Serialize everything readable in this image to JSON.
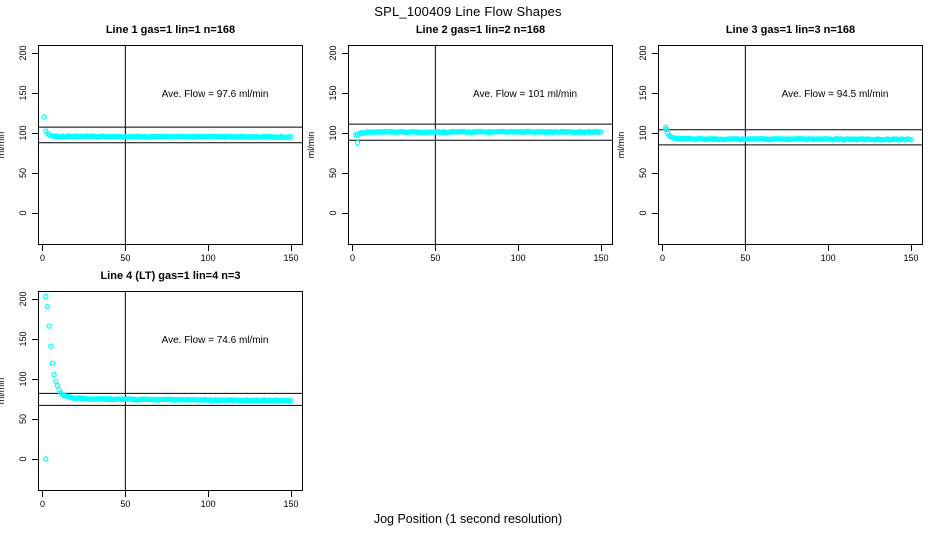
{
  "title": "SPL_100409  Line Flow Shapes",
  "x_axis_label": "Jog Position (1 second resolution)",
  "colors": {
    "points": "#00FFFF",
    "axis": "#000000",
    "background": "#FFFFFF"
  },
  "chart_data": {
    "type": "scatter",
    "title": "SPL_100409  Line Flow Shapes",
    "xlabel": "Jog Position (1 second resolution)",
    "ylabel": "ml/min",
    "grid": false,
    "layout": "2-row grid, 4 panels (3 top, 1 bottom-left)",
    "x_ticks": [
      0,
      50,
      100,
      150
    ],
    "y_ticks": [
      0,
      50,
      100,
      150,
      200
    ],
    "xlim": [
      -3,
      157
    ],
    "ylim": [
      -40,
      210
    ],
    "vline_x": 50,
    "marker": "open-circle",
    "panels": [
      {
        "id": "line-1",
        "title": "Line 1 gas=1 lin=1 n=168",
        "annotation": "Ave. Flow =  97.6  ml/min",
        "ave_flow_ml_min": 97.6,
        "n": 168,
        "ref_lines": [
          107.4,
          87.8
        ],
        "outliers": [
          [
            1,
            120
          ]
        ],
        "profile": [
          [
            2,
            103
          ],
          [
            3,
            99.5
          ],
          [
            4,
            97.8
          ],
          [
            5,
            96.9
          ],
          [
            6,
            96.3
          ],
          [
            8,
            95.9
          ],
          [
            10,
            95.7
          ],
          [
            20,
            95.6
          ],
          [
            50,
            95.5
          ],
          [
            100,
            95.3
          ],
          [
            150,
            95.0
          ]
        ]
      },
      {
        "id": "line-2",
        "title": "Line 2 gas=1 lin=2 n=168",
        "annotation": "Ave. Flow =  101  ml/min",
        "ave_flow_ml_min": 101,
        "n": 168,
        "ref_lines": [
          111.1,
          90.9
        ],
        "outliers": [
          [
            3,
            88
          ]
        ],
        "profile": [
          [
            2,
            97.8
          ],
          [
            3,
            98.6
          ],
          [
            4,
            99.4
          ],
          [
            5,
            99.9
          ],
          [
            6,
            100.3
          ],
          [
            8,
            100.8
          ],
          [
            10,
            101.0
          ],
          [
            20,
            101.2
          ],
          [
            50,
            101.3
          ],
          [
            100,
            101.3
          ],
          [
            150,
            101.4
          ]
        ]
      },
      {
        "id": "line-3",
        "title": "Line 3 gas=1 lin=3 n=168",
        "annotation": "Ave. Flow =  94.5  ml/min",
        "ave_flow_ml_min": 94.5,
        "n": 168,
        "ref_lines": [
          104.0,
          85.1
        ],
        "outliers": [
          [
            2,
            107
          ],
          [
            2.5,
            104.5
          ]
        ],
        "profile": [
          [
            2,
            104
          ],
          [
            3,
            100
          ],
          [
            4,
            97
          ],
          [
            5,
            95.3
          ],
          [
            6,
            94.2
          ],
          [
            8,
            93.2
          ],
          [
            10,
            92.8
          ],
          [
            20,
            92.5
          ],
          [
            50,
            92.4
          ],
          [
            100,
            92.2
          ],
          [
            150,
            92.0
          ]
        ]
      },
      {
        "id": "line-4",
        "title": "Line 4 (LT) gas=1 lin=4 n=3",
        "annotation": "Ave. Flow =  74.6  ml/min",
        "ave_flow_ml_min": 74.6,
        "n": 3,
        "ref_lines": [
          82.1,
          67.1
        ],
        "outliers": [
          [
            2,
            0
          ]
        ],
        "profile": [
          [
            2,
            203
          ],
          [
            3,
            190
          ],
          [
            4,
            166
          ],
          [
            5,
            141
          ],
          [
            6,
            119
          ],
          [
            7,
            105
          ],
          [
            8,
            97
          ],
          [
            9,
            91
          ],
          [
            10,
            86.5
          ],
          [
            11,
            83
          ],
          [
            12,
            81
          ],
          [
            13,
            79.5
          ],
          [
            14,
            78.5
          ],
          [
            16,
            77.3
          ],
          [
            18,
            76.6
          ],
          [
            20,
            76.2
          ],
          [
            30,
            75.3
          ],
          [
            50,
            74.6
          ],
          [
            80,
            74.0
          ],
          [
            120,
            73.4
          ],
          [
            150,
            73.0
          ]
        ]
      }
    ]
  }
}
